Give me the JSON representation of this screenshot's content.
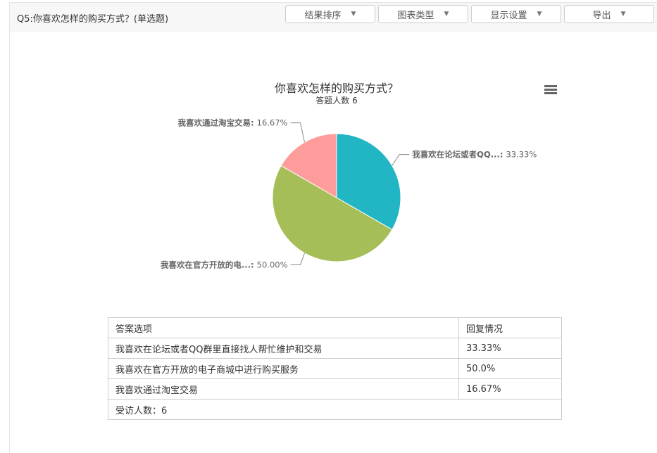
{
  "header": {
    "question_title": "Q5:你喜欢怎样的购买方式？(单选题)",
    "buttons": [
      {
        "label": "结果排序"
      },
      {
        "label": "图表类型"
      },
      {
        "label": "显示设置"
      },
      {
        "label": "导出"
      }
    ]
  },
  "chart_data": {
    "type": "pie",
    "title": "你喜欢怎样的购买方式？",
    "subtitle": "答题人数 6",
    "slices": [
      {
        "label": "我喜欢在论坛或者QQ...",
        "value": 33.33,
        "display": "33.33%",
        "color": "#22b5c4"
      },
      {
        "label": "我喜欢在官方开放的电...",
        "value": 50.0,
        "display": "50.00%",
        "color": "#a5be57"
      },
      {
        "label": "我喜欢通过淘宝交易",
        "value": 16.67,
        "display": "16.67%",
        "color": "#fe9b9b"
      }
    ],
    "menu_icon": "hamburger-icon"
  },
  "table": {
    "headers": [
      "答案选项",
      "回复情况"
    ],
    "rows": [
      [
        "我喜欢在论坛或者QQ群里直接找人帮忙维护和交易",
        "33.33%"
      ],
      [
        "我喜欢在官方开放的电子商城中进行购买服务",
        "50.0%"
      ],
      [
        "我喜欢通过淘宝交易",
        "16.67%"
      ]
    ],
    "footer": "受访人数：6"
  }
}
